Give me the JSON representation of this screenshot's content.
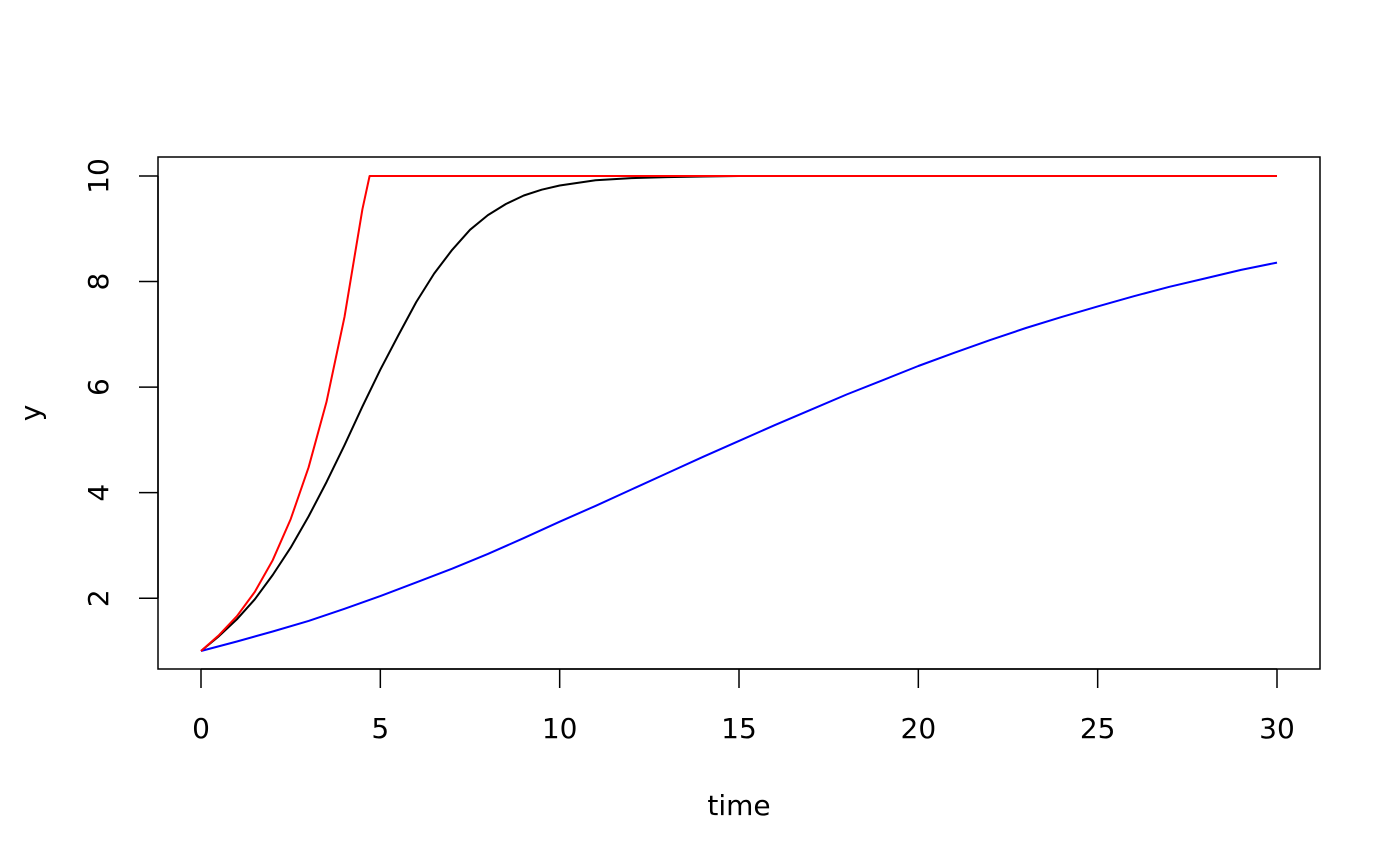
{
  "chart_data": {
    "type": "line",
    "title": "",
    "xlabel": "time",
    "ylabel": "y",
    "xlim": [
      0,
      30
    ],
    "ylim": [
      1,
      10
    ],
    "x_ticks": [
      0,
      5,
      10,
      15,
      20,
      25,
      30
    ],
    "y_ticks": [
      2,
      4,
      6,
      8,
      10
    ],
    "grid": false,
    "legend": "none",
    "series": [
      {
        "color": "#000000",
        "x": [
          0,
          0.5,
          1,
          1.5,
          2,
          2.5,
          3,
          3.5,
          4,
          4.5,
          5,
          5.5,
          6,
          6.5,
          7,
          7.5,
          8,
          8.5,
          9,
          9.5,
          10,
          11,
          12,
          13,
          14,
          15,
          20,
          25,
          30
        ],
        "y": [
          1.0,
          1.28,
          1.6,
          1.98,
          2.44,
          2.96,
          3.55,
          4.2,
          4.9,
          5.63,
          6.33,
          6.98,
          7.61,
          8.15,
          8.6,
          8.98,
          9.26,
          9.47,
          9.63,
          9.74,
          9.82,
          9.92,
          9.96,
          9.98,
          9.99,
          10.0,
          10.0,
          10.0,
          10.0
        ]
      },
      {
        "color": "#0000ff",
        "x": [
          0,
          1,
          2,
          3,
          4,
          5,
          6,
          7,
          8,
          9,
          10,
          11,
          12,
          13,
          14,
          15,
          16,
          17,
          18,
          19,
          20,
          21,
          22,
          23,
          24,
          25,
          26,
          27,
          28,
          29,
          30
        ],
        "y": [
          1.0,
          1.18,
          1.37,
          1.57,
          1.8,
          2.04,
          2.3,
          2.56,
          2.84,
          3.14,
          3.45,
          3.75,
          4.06,
          4.37,
          4.68,
          4.98,
          5.28,
          5.57,
          5.86,
          6.13,
          6.4,
          6.65,
          6.89,
          7.12,
          7.33,
          7.53,
          7.72,
          7.9,
          8.06,
          8.22,
          8.36
        ]
      },
      {
        "color": "#ff0000",
        "x": [
          0,
          0.5,
          1,
          1.5,
          2,
          2.5,
          3,
          3.5,
          4,
          4.5,
          4.7,
          5,
          10,
          15,
          20,
          25,
          30
        ],
        "y": [
          1.0,
          1.3,
          1.66,
          2.12,
          2.72,
          3.5,
          4.48,
          5.72,
          7.33,
          9.37,
          10.0,
          10.0,
          10.0,
          10.0,
          10.0,
          10.0,
          10.0
        ]
      }
    ]
  }
}
